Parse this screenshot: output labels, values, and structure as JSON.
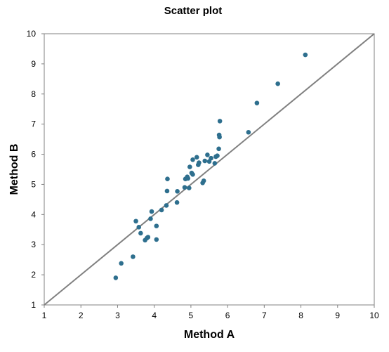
{
  "chart_data": {
    "type": "scatter",
    "title": "Scatter plot",
    "xlabel": "Method A",
    "ylabel": "Method B",
    "xlim": [
      1,
      10
    ],
    "ylim": [
      1,
      10
    ],
    "xticks": [
      1,
      2,
      3,
      4,
      5,
      6,
      7,
      8,
      9,
      10
    ],
    "yticks": [
      1,
      2,
      3,
      4,
      5,
      6,
      7,
      8,
      9,
      10
    ],
    "grid": false,
    "reference_line": {
      "from": [
        1,
        1
      ],
      "to": [
        10,
        10
      ],
      "color": "#808080"
    },
    "marker_color": "#2e6f8e",
    "series": [
      {
        "points": [
          [
            2.95,
            1.9
          ],
          [
            3.1,
            2.38
          ],
          [
            3.42,
            2.6
          ],
          [
            3.5,
            3.78
          ],
          [
            3.58,
            3.58
          ],
          [
            3.63,
            3.38
          ],
          [
            3.75,
            3.15
          ],
          [
            3.8,
            3.22
          ],
          [
            3.83,
            3.25
          ],
          [
            3.9,
            3.86
          ],
          [
            3.93,
            4.1
          ],
          [
            4.06,
            3.62
          ],
          [
            4.06,
            3.17
          ],
          [
            4.2,
            4.15
          ],
          [
            4.33,
            4.3
          ],
          [
            4.35,
            4.78
          ],
          [
            4.36,
            5.18
          ],
          [
            4.62,
            4.4
          ],
          [
            4.63,
            4.77
          ],
          [
            4.83,
            4.9
          ],
          [
            4.85,
            5.18
          ],
          [
            4.9,
            5.25
          ],
          [
            4.92,
            5.2
          ],
          [
            4.95,
            4.88
          ],
          [
            4.97,
            5.58
          ],
          [
            5.02,
            5.38
          ],
          [
            5.05,
            5.33
          ],
          [
            5.05,
            5.82
          ],
          [
            5.16,
            5.9
          ],
          [
            5.2,
            5.65
          ],
          [
            5.22,
            5.72
          ],
          [
            5.32,
            5.05
          ],
          [
            5.35,
            5.12
          ],
          [
            5.38,
            5.78
          ],
          [
            5.45,
            5.98
          ],
          [
            5.5,
            5.76
          ],
          [
            5.55,
            5.87
          ],
          [
            5.65,
            5.7
          ],
          [
            5.68,
            5.92
          ],
          [
            5.72,
            5.95
          ],
          [
            5.76,
            6.18
          ],
          [
            5.77,
            6.64
          ],
          [
            5.78,
            6.57
          ],
          [
            5.79,
            7.1
          ],
          [
            6.57,
            6.73
          ],
          [
            6.8,
            7.7
          ],
          [
            7.37,
            8.34
          ],
          [
            8.12,
            9.3
          ]
        ]
      }
    ]
  }
}
